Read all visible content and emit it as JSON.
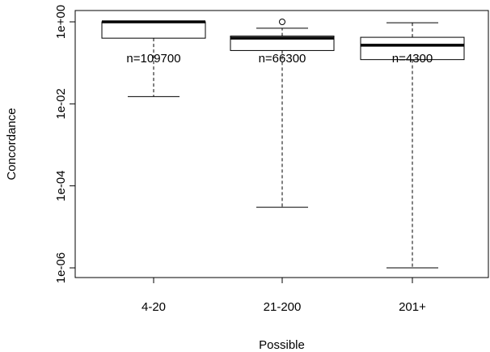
{
  "chart_data": {
    "type": "boxplot",
    "title": "",
    "xlabel": "Possible",
    "ylabel": "Concordance",
    "y_scale": "log10",
    "ylim": [
      7e-07,
      1.4
    ],
    "y_ticks": [
      {
        "value": 1,
        "label": "1e+00"
      },
      {
        "value": 0.01,
        "label": "1e-02"
      },
      {
        "value": 0.0001,
        "label": "1e-04"
      },
      {
        "value": 1e-06,
        "label": "1e-06"
      }
    ],
    "grid": false,
    "categories": [
      "4-20",
      "21-200",
      "201+"
    ],
    "boxes": [
      {
        "category": "4-20",
        "n_label": "n=109700",
        "whisker_low": 0.015,
        "q1": 0.4,
        "median": 1.0,
        "q3": 1.0,
        "whisker_high": 1.0,
        "outliers": []
      },
      {
        "category": "21-200",
        "n_label": "n=66300",
        "whisker_low": 3e-05,
        "q1": 0.2,
        "median": 0.4,
        "q3": 0.45,
        "whisker_high": 0.7,
        "outliers": [
          1.0
        ]
      },
      {
        "category": "201+",
        "n_label": "n=4300",
        "whisker_low": 1e-06,
        "q1": 0.12,
        "median": 0.27,
        "q3": 0.42,
        "whisker_high": 0.95,
        "outliers": []
      }
    ]
  }
}
